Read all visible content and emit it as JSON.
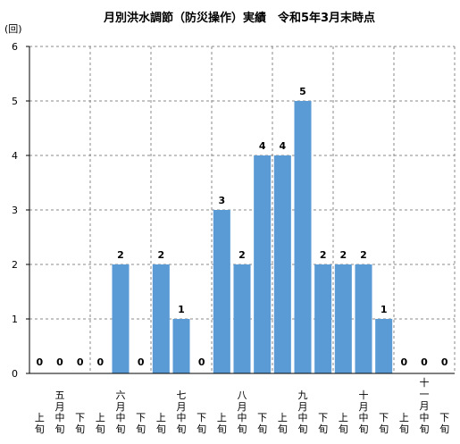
{
  "chart_data": {
    "type": "bar",
    "title": "月別洪水調節（防災操作）実績　令和5年3月末時点",
    "ylabel": "(回)",
    "xlabel": "",
    "ylim": [
      0,
      6
    ],
    "yticks": [
      "0",
      "1",
      "2",
      "3",
      "4",
      "5",
      "6"
    ],
    "grid": true,
    "color": "#5b9bd5",
    "months": [
      "五月",
      "六月",
      "七月",
      "八月",
      "九月",
      "十月",
      "十一月"
    ],
    "periods": [
      "上旬",
      "中旬",
      "下旬"
    ],
    "categories": [
      "五月上旬",
      "五月中旬",
      "五月下旬",
      "六月上旬",
      "六月中旬",
      "六月下旬",
      "七月上旬",
      "七月中旬",
      "七月下旬",
      "八月上旬",
      "八月中旬",
      "八月下旬",
      "九月上旬",
      "九月中旬",
      "九月下旬",
      "十月上旬",
      "十月中旬",
      "十月下旬",
      "十一月上旬",
      "十一月中旬",
      "十一月下旬"
    ],
    "values": [
      0,
      0,
      0,
      0,
      2,
      0,
      2,
      1,
      0,
      3,
      2,
      4,
      4,
      5,
      2,
      2,
      2,
      1,
      0,
      0,
      0
    ]
  }
}
